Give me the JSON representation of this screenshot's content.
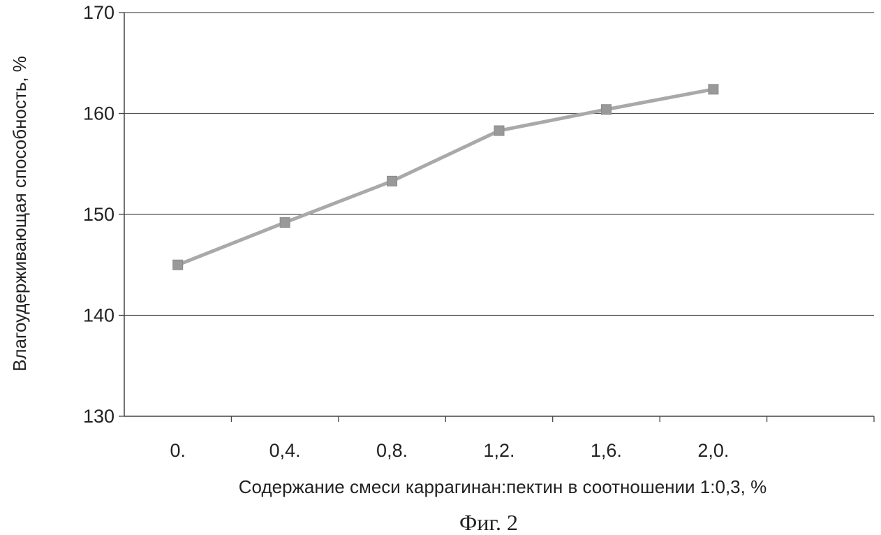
{
  "chart_data": {
    "type": "line",
    "categories": [
      "0.",
      "0,4.",
      "0,8.",
      "1,2.",
      "1,6.",
      "2,0."
    ],
    "series": [
      {
        "values": [
          145,
          149.2,
          153.3,
          158.3,
          160.4,
          162.4
        ]
      }
    ],
    "xlabel": "Содержание смеси каррагинан:пектин в соотношении 1:0,3, %",
    "ylabel": "Влагоудерживающая способность, %",
    "ylim": [
      130,
      170
    ],
    "yticks": [
      130,
      140,
      150,
      160,
      170
    ],
    "grid": true,
    "legend": "none",
    "colors": {
      "series": "#a9a9a9",
      "marker": "#999999",
      "grid": "#555555",
      "axis": "#444444"
    }
  },
  "caption": "Фиг. 2"
}
